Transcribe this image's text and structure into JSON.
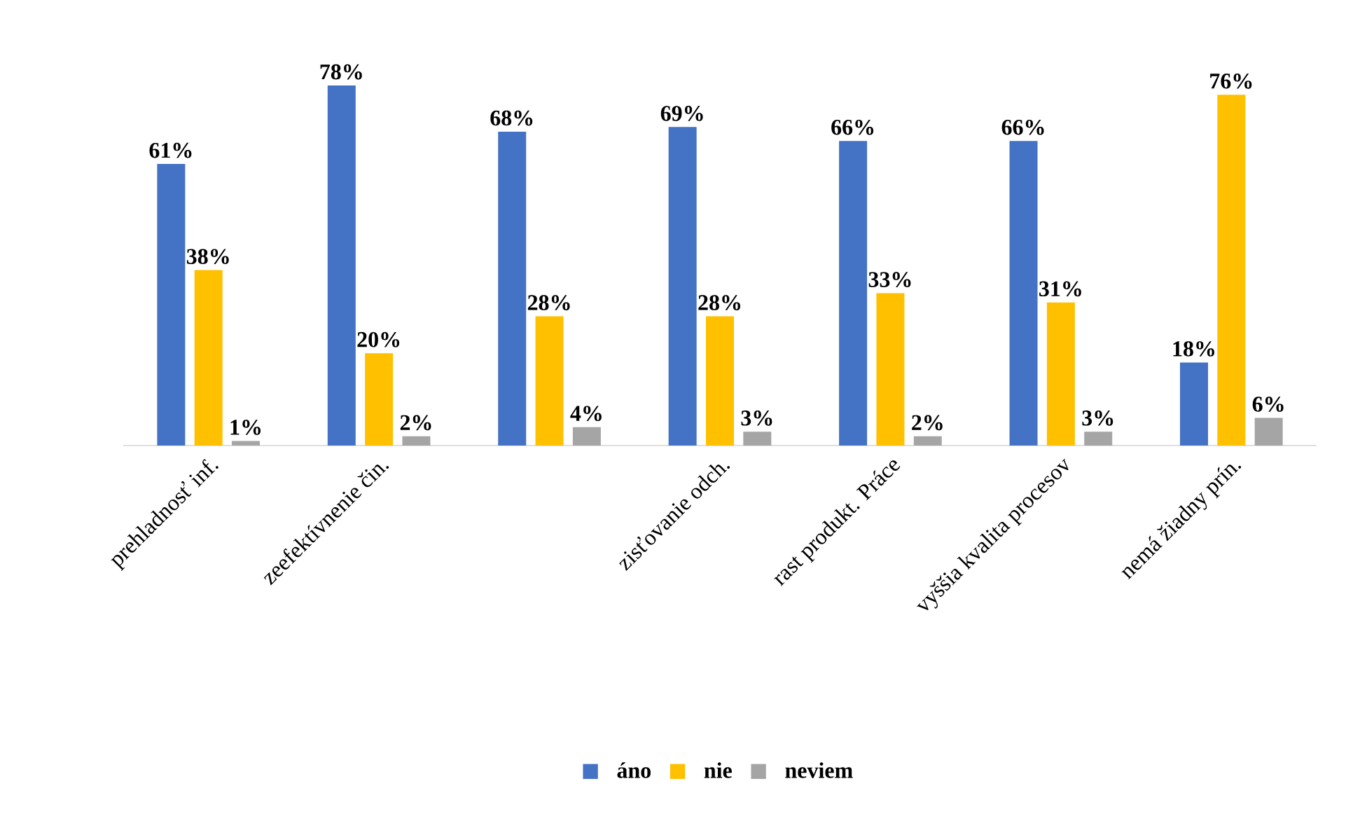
{
  "chart_data": {
    "type": "bar",
    "categories": [
      "prehladnosť inf.",
      "zeefektívnenie čin.",
      null,
      "zisťovanie odch.",
      "rast produkt. Práce",
      "vyššia kvalita procesov",
      "nemá žiadny prín."
    ],
    "series": [
      {
        "name": "áno",
        "color": "#4472c4",
        "values": [
          61,
          78,
          68,
          69,
          66,
          66,
          18
        ],
        "value_labels": [
          "61%",
          "78%",
          "68%",
          "69%",
          "66%",
          "66%",
          "18%"
        ]
      },
      {
        "name": "nie",
        "color": "#ffc000",
        "values": [
          38,
          20,
          28,
          28,
          33,
          31,
          76
        ],
        "value_labels": [
          "38%",
          "20%",
          "28%",
          "28%",
          "33%",
          "31%",
          "76%"
        ]
      },
      {
        "name": "neviem",
        "color": "#a5a5a5",
        "values": [
          1,
          2,
          4,
          3,
          2,
          3,
          6
        ],
        "value_labels": [
          "1%",
          "2%",
          "4%",
          "3%",
          "2%",
          "3%",
          "6%"
        ]
      }
    ],
    "legend": "bottom"
  }
}
